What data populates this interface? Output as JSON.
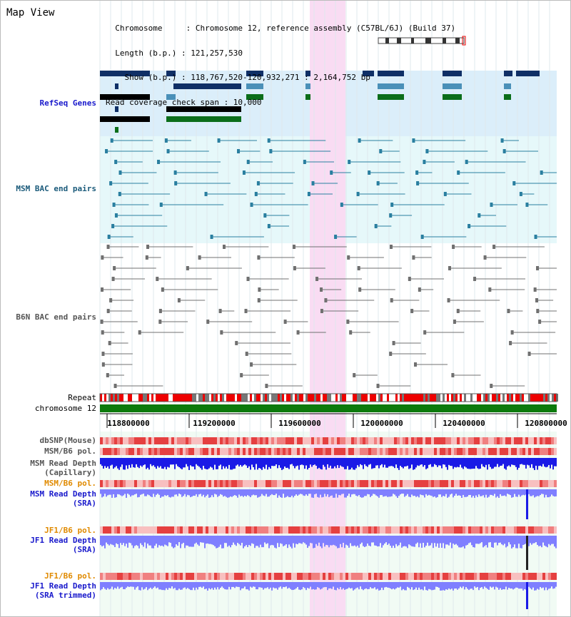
{
  "header": {
    "title": "Map View",
    "info_lines": [
      "  Chromosome     : Chromosome 12, reference assembly (C57BL/6J) (Build 37)",
      "  Length (b.p.) : 121,257,530",
      "    Show (b.p.) : 118,767,520-120,932,271 : 2,164,752 bp",
      "Read coverage check span : 10,000"
    ]
  },
  "tracks": {
    "refseq": "RefSeq Genes",
    "msm_bac": "MSM BAC end pairs",
    "b6n_bac": "B6N BAC end pairs",
    "repeat": "Repeat",
    "chromosome": "chromosome 12",
    "dbsnp": "dbSNP(Mouse)",
    "msm_pol": "MSM/B6 pol.",
    "msm_depth_cap_1": "MSM Read Depth",
    "msm_depth_cap_2": "(Capillary)",
    "msm_pol2": "MSM/B6 pol.",
    "msm_depth_sra_1": "MSM Read Depth",
    "msm_depth_sra_2": "(SRA)",
    "jf1_pol": "JF1/B6 pol.",
    "jf1_depth_sra_1": "JF1 Read Depth",
    "jf1_depth_sra_2": "(SRA)",
    "jf1_pol2": "JF1/B6 pol.",
    "jf1_depth_trim_1": "JF1 Read Depth",
    "jf1_depth_trim_2": "(SRA trimmed)"
  },
  "axis": {
    "range": [
      118767520,
      120932271
    ],
    "ticks": [
      "118800000",
      "119200000",
      "119600000",
      "120000000",
      "120400000",
      "120800000"
    ]
  },
  "colors": {
    "refseq_bg": "#dbeefa",
    "bac_bg": "#e6f8fa",
    "highlight": "#f9dcf3",
    "depth_bg": "#f1fbf4",
    "gene_dark": "#0f2f66",
    "gene_mid": "#4a90b8",
    "gene_green": "#0b6e1a",
    "bac_teal": "#2a7fa0",
    "bac_gray": "#707070",
    "chromosome": "#0c7a0c",
    "depth_blue": "#1a1ae6",
    "depth_light": "#7f7fff",
    "label_blue": "#1a1acc",
    "label_orange": "#e08a00",
    "label_teal": "#1a5a7a"
  }
}
